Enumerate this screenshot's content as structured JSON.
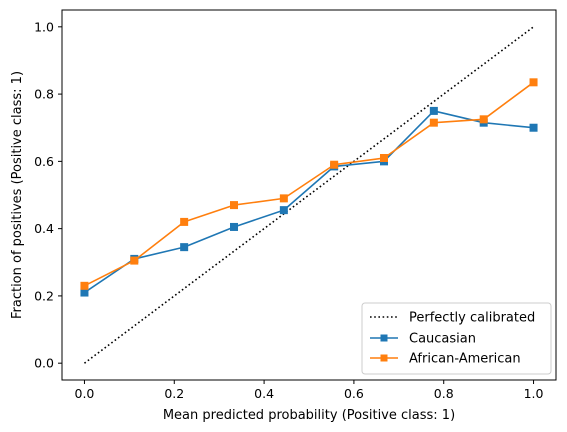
{
  "chart_data": {
    "type": "line",
    "title": "",
    "xlabel": "Mean predicted probability (Positive class: 1)",
    "ylabel": "Fraction of positives (Positive class: 1)",
    "xlim": [
      -0.05,
      1.05
    ],
    "ylim": [
      -0.05,
      1.05
    ],
    "xticks": [
      0.0,
      0.2,
      0.4,
      0.6,
      0.8,
      1.0
    ],
    "yticks": [
      0.0,
      0.2,
      0.4,
      0.6,
      0.8,
      1.0
    ],
    "xtick_labels": [
      "0.0",
      "0.2",
      "0.4",
      "0.6",
      "0.8",
      "1.0"
    ],
    "ytick_labels": [
      "0.0",
      "0.2",
      "0.4",
      "0.6",
      "0.8",
      "1.0"
    ],
    "grid": false,
    "legend_position": "bottom-right",
    "reference_line": {
      "name": "Perfectly calibrated",
      "style": "dotted",
      "color": "#000000",
      "x": [
        0,
        1
      ],
      "y": [
        0,
        1
      ]
    },
    "series": [
      {
        "name": "Caucasian",
        "color": "#1f77b4",
        "marker": "square",
        "x": [
          0.0,
          0.111,
          0.222,
          0.333,
          0.444,
          0.556,
          0.667,
          0.778,
          0.889,
          1.0
        ],
        "y": [
          0.21,
          0.31,
          0.345,
          0.405,
          0.455,
          0.585,
          0.6,
          0.75,
          0.715,
          0.7
        ]
      },
      {
        "name": "African-American",
        "color": "#ff7f0e",
        "marker": "square",
        "x": [
          0.0,
          0.111,
          0.222,
          0.333,
          0.444,
          0.556,
          0.667,
          0.778,
          0.889,
          1.0
        ],
        "y": [
          0.23,
          0.305,
          0.42,
          0.47,
          0.49,
          0.59,
          0.61,
          0.715,
          0.725,
          0.835
        ]
      }
    ]
  }
}
